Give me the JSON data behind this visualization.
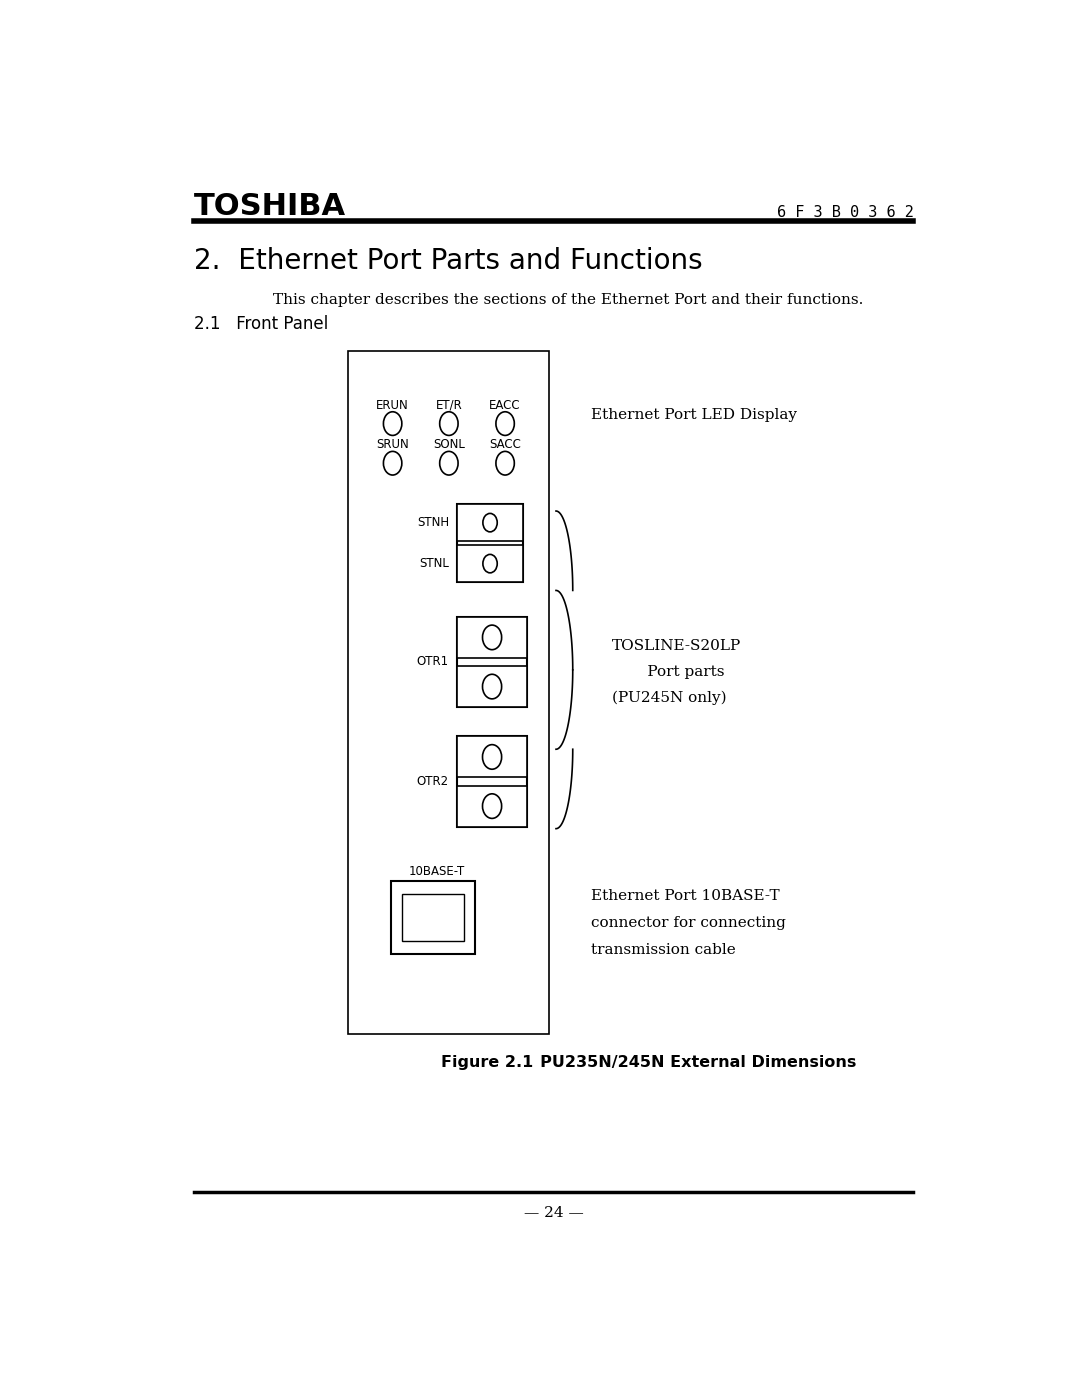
{
  "page_title": "TOSHIBA",
  "page_code": "6 F 3 B 0 3 6 2",
  "chapter_title": "2.  Ethernet Port Parts and Functions",
  "intro_text": "This chapter describes the sections of the Ethernet Port and their functions.",
  "section_title": "2.1   Front Panel",
  "figure_caption_bold": "Figure 2.1",
  "figure_caption_rest": "     PU235N/245N External Dimensions",
  "page_number": "— 24 —",
  "led_labels_row1": [
    "ERUN",
    "ET/R",
    "EACC"
  ],
  "led_labels_row2": [
    "SRUN",
    "SONL",
    "SACC"
  ],
  "annotation_led": "Ethernet Port LED Display",
  "annotation_tosline_1": "TOSLINE-S20LP",
  "annotation_tosline_2": "     Port parts",
  "annotation_tosline_3": "(PU245N only)",
  "annotation_base_1": "Ethernet Port 10BASE-T",
  "annotation_base_2": "connector for connecting",
  "annotation_base_3": "transmission cable",
  "base_label": "10BASE-T",
  "bg_color": "#ffffff",
  "fg_color": "#000000"
}
